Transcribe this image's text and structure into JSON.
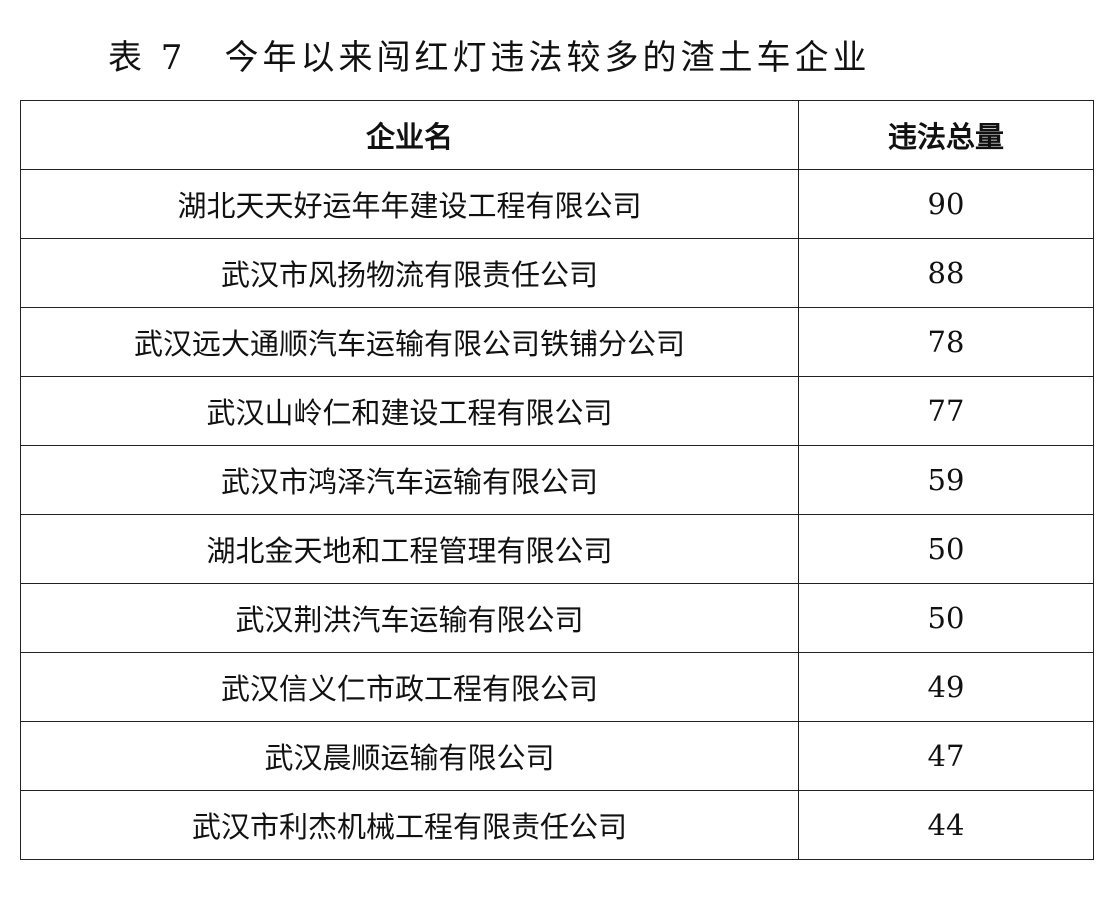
{
  "title": "表 7　今年以来闯红灯违法较多的渣土车企业",
  "table": {
    "header": [
      "企业名",
      "违法总量"
    ],
    "rows": [
      [
        "湖北天天好运年年建设工程有限公司",
        90
      ],
      [
        "武汉市风扬物流有限责任公司",
        88
      ],
      [
        "武汉远大通顺汽车运输有限公司铁铺分公司",
        78
      ],
      [
        "武汉山岭仁和建设工程有限公司",
        77
      ],
      [
        "武汉市鸿泽汽车运输有限公司",
        59
      ],
      [
        "湖北金天地和工程管理有限公司",
        50
      ],
      [
        "武汉荆洪汽车运输有限公司",
        50
      ],
      [
        "武汉信义仁市政工程有限公司",
        49
      ],
      [
        "武汉晨顺运输有限公司",
        47
      ],
      [
        "武汉市利杰机械工程有限责任公司",
        44
      ]
    ]
  }
}
